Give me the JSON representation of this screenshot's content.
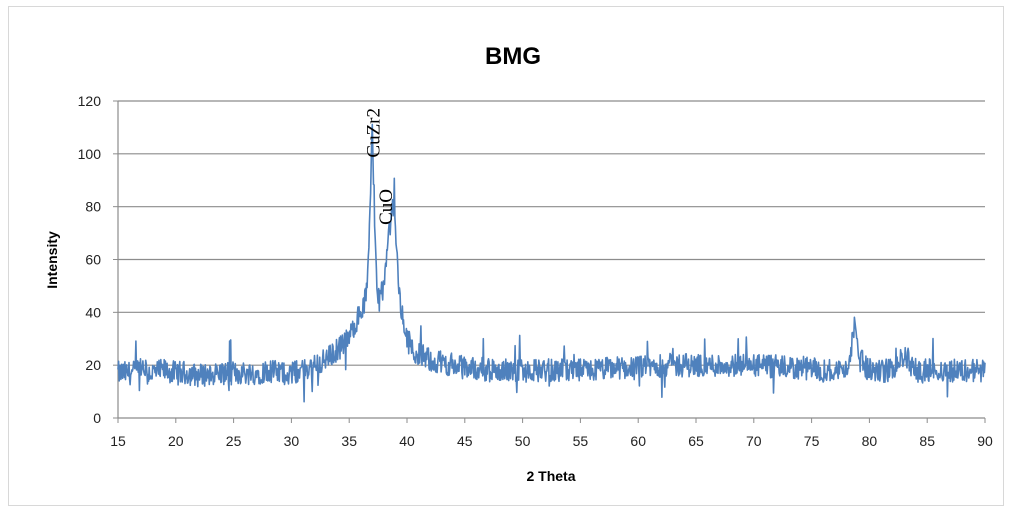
{
  "chart_data": {
    "type": "line",
    "title": "BMG",
    "xlabel": "2 Theta",
    "ylabel": "Intensity",
    "xlim": [
      15,
      90
    ],
    "ylim": [
      0,
      120
    ],
    "xticks": [
      15,
      20,
      25,
      30,
      35,
      40,
      45,
      50,
      55,
      60,
      65,
      70,
      75,
      80,
      85,
      90
    ],
    "yticks": [
      0,
      20,
      40,
      60,
      80,
      100,
      120
    ],
    "grid": "horizontal",
    "legend": "none",
    "series_color": "#4f81bd",
    "series": [
      {
        "x": [
          15,
          16,
          17,
          18,
          19,
          20,
          21,
          22,
          23,
          24,
          25,
          26,
          27,
          28,
          29,
          30,
          31,
          32,
          33,
          34,
          35,
          35.5,
          36,
          36.3,
          36.6,
          36.8,
          37.0,
          37.2,
          37.4,
          37.6,
          37.8,
          38.0,
          38.2,
          38.4,
          38.6,
          38.8,
          39.0,
          39.2,
          39.5,
          40,
          40.5,
          41,
          42,
          43,
          44,
          45,
          46,
          47,
          48,
          49,
          50,
          52,
          54,
          56,
          58,
          60,
          62,
          64,
          66,
          68,
          70,
          72,
          74,
          76,
          78,
          78.5,
          78.8,
          79.2,
          80,
          82,
          83,
          84,
          86,
          88,
          90
        ],
        "y": [
          17,
          17,
          18,
          17,
          18,
          17,
          17,
          16,
          17,
          17,
          17,
          17,
          17,
          18,
          17,
          17,
          18,
          20,
          22,
          26,
          30,
          36,
          40,
          43,
          52,
          80,
          112,
          70,
          48,
          45,
          48,
          50,
          58,
          68,
          75,
          80,
          72,
          55,
          40,
          30,
          26,
          24,
          22,
          21,
          20,
          19,
          19,
          18,
          18,
          18,
          18,
          18,
          18,
          18,
          19,
          19,
          20,
          20,
          20,
          20,
          20,
          19,
          19,
          18,
          18,
          28,
          38,
          22,
          18,
          18,
          24,
          18,
          18,
          18,
          18
        ]
      }
    ],
    "annotations": [
      {
        "text": "CuZr2",
        "x": 37.0
      },
      {
        "text": "CuO",
        "x": 38.8
      }
    ]
  }
}
